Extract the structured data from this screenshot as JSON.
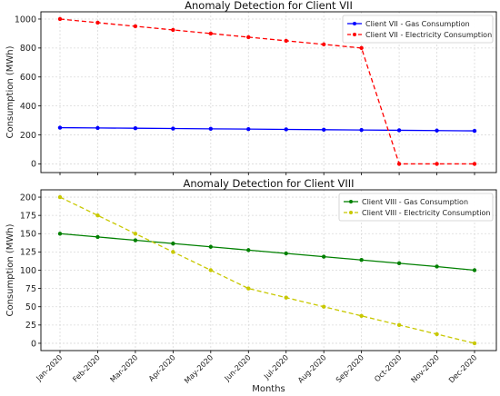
{
  "chart_data": [
    {
      "type": "line",
      "title": "Anomaly Detection for Client VII",
      "xlabel": "",
      "ylabel": "Consumption (MWh)",
      "categories": [
        "Jan-2020",
        "Feb-2020",
        "Mar-2020",
        "Apr-2020",
        "May-2020",
        "Jun-2020",
        "Jul-2020",
        "Aug-2020",
        "Sep-2020",
        "Oct-2020",
        "Nov-2020",
        "Dec-2020"
      ],
      "ylim": [
        -60,
        1050
      ],
      "yticks": [
        0,
        200,
        400,
        600,
        800,
        1000
      ],
      "grid": true,
      "legend": "top-right",
      "series": [
        {
          "name": "Client VII - Gas Consumption",
          "color": "#0000ff",
          "dashed": false,
          "values": [
            250,
            248,
            246,
            244,
            242,
            240,
            238,
            236,
            234,
            232,
            230,
            228
          ]
        },
        {
          "name": "Client VII - Electricity Consumption",
          "color": "#ff0000",
          "dashed": true,
          "values": [
            1000,
            975,
            950,
            925,
            900,
            875,
            850,
            825,
            800,
            0,
            0,
            0
          ]
        }
      ]
    },
    {
      "type": "line",
      "title": "Anomaly Detection for Client VIII",
      "xlabel": "Months",
      "ylabel": "Consumption (MWh)",
      "categories": [
        "Jan-2020",
        "Feb-2020",
        "Mar-2020",
        "Apr-2020",
        "May-2020",
        "Jun-2020",
        "Jul-2020",
        "Aug-2020",
        "Sep-2020",
        "Oct-2020",
        "Nov-2020",
        "Dec-2020"
      ],
      "ylim": [
        -10,
        210
      ],
      "yticks": [
        0,
        25,
        50,
        75,
        100,
        125,
        150,
        175,
        200
      ],
      "grid": true,
      "legend": "top-right",
      "series": [
        {
          "name": "Client VIII - Gas Consumption",
          "color": "#008000",
          "dashed": false,
          "values": [
            150,
            145.5,
            141,
            136.5,
            132,
            127.5,
            123,
            118.5,
            114,
            109.5,
            105,
            100
          ]
        },
        {
          "name": "Client VIII - Electricity Consumption",
          "color": "#c8c800",
          "dashed": true,
          "values": [
            200,
            175,
            150,
            125,
            100,
            75,
            62.5,
            50,
            37.5,
            25,
            12.5,
            0
          ]
        }
      ]
    }
  ]
}
